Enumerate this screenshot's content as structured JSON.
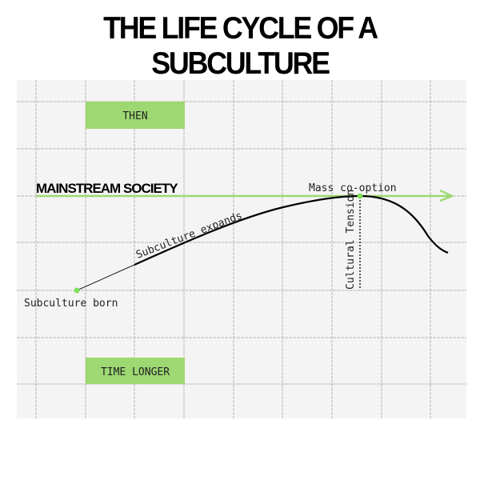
{
  "title": "THE LIFE CYCLE OF A SUBCULTURE",
  "labels": {
    "then": "THEN",
    "time_longer": "TIME LONGER",
    "mainstream": "MAINSTREAM SOCIETY",
    "mass_cooption": "Mass co-option",
    "subculture_expands": "Subculture expands",
    "subculture_born": "Subculture born",
    "cultural_tension": "Cultural Tension"
  },
  "colors": {
    "accent": "#9ed872",
    "dot": "#7fe05a",
    "grid": "#b8b8b8",
    "background": "#f4f4f4"
  }
}
